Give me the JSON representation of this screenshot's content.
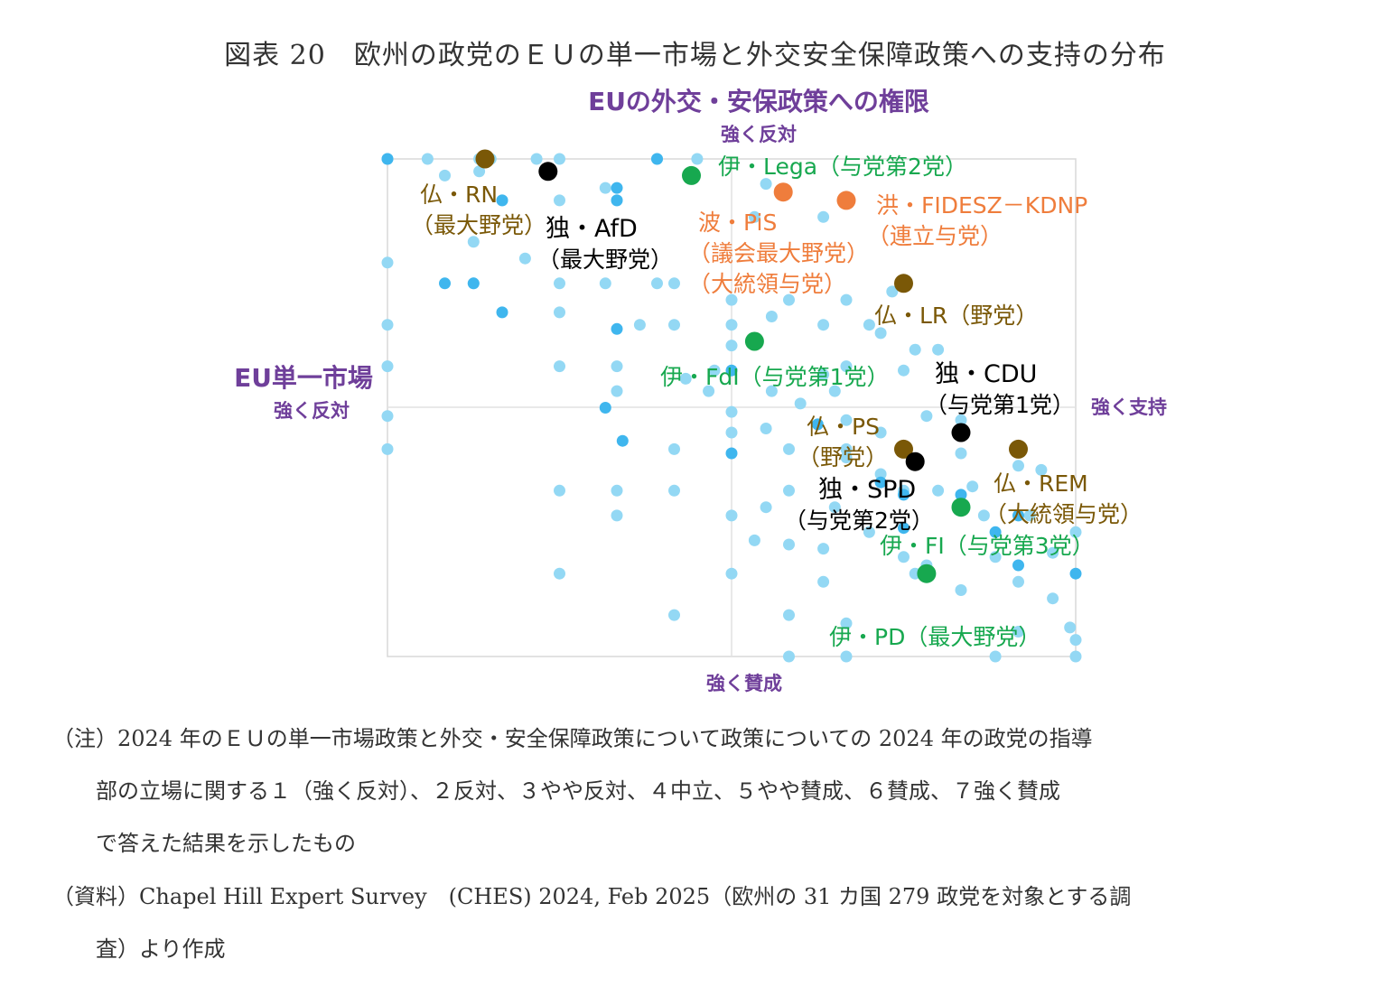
{
  "title": "図表 20　欧州の政党のＥＵの単一市場と外交安全保障政策への支持の分布",
  "chart_data": {
    "type": "scatter",
    "x_axis": {
      "title": "EU単一市場",
      "min_label": "強く反対",
      "max_label": "強く支持",
      "range": [
        1,
        7
      ]
    },
    "y_axis": {
      "title": "EUの外交・安保政策への権限",
      "top_label": "強く反対",
      "bottom_label": "強く賛成",
      "range": [
        1,
        7
      ]
    },
    "colors": {
      "background_points": "#93d8f4",
      "background_points_dark": "#3fb6ee",
      "france": "#7a5807",
      "germany": "#000000",
      "italy": "#17a84f",
      "poland_hungary": "#ef7d3c",
      "axis_purple": "#6f3f9a",
      "frame": "#d8d8d8"
    },
    "background_points": [
      [
        1.0,
        1.0
      ],
      [
        1.35,
        1.0
      ],
      [
        1.8,
        1.0
      ],
      [
        1.9,
        1.0
      ],
      [
        2.3,
        1.0
      ],
      [
        2.5,
        1.0
      ],
      [
        3.35,
        1.0
      ],
      [
        3.7,
        1.0
      ],
      [
        1.5,
        1.2
      ],
      [
        1.8,
        1.15
      ],
      [
        2.4,
        1.15
      ],
      [
        2.9,
        1.35
      ],
      [
        3.65,
        1.2
      ],
      [
        4.3,
        1.3
      ],
      [
        2.0,
        1.5
      ],
      [
        2.5,
        1.5
      ],
      [
        3.0,
        1.5
      ],
      [
        4.2,
        1.7
      ],
      [
        4.8,
        1.7
      ],
      [
        1.0,
        2.25
      ],
      [
        1.75,
        2.0
      ],
      [
        2.2,
        2.2
      ],
      [
        3.35,
        2.5
      ],
      [
        3.5,
        2.5
      ],
      [
        1.75,
        2.5
      ],
      [
        2.5,
        2.5
      ],
      [
        2.9,
        2.5
      ],
      [
        4.0,
        2.7
      ],
      [
        4.5,
        2.7
      ],
      [
        5.0,
        2.7
      ],
      [
        5.4,
        2.6
      ],
      [
        1.0,
        3.0
      ],
      [
        2.5,
        2.85
      ],
      [
        3.2,
        3.0
      ],
      [
        3.5,
        3.0
      ],
      [
        4.0,
        3.0
      ],
      [
        4.35,
        2.9
      ],
      [
        4.8,
        3.0
      ],
      [
        5.2,
        3.0
      ],
      [
        4.0,
        3.25
      ],
      [
        5.3,
        3.1
      ],
      [
        5.6,
        3.3
      ],
      [
        5.8,
        3.3
      ],
      [
        5.0,
        3.5
      ],
      [
        5.5,
        3.55
      ],
      [
        1.0,
        3.5
      ],
      [
        2.5,
        3.5
      ],
      [
        3.0,
        3.5
      ],
      [
        3.6,
        3.65
      ],
      [
        3.85,
        3.55
      ],
      [
        4.35,
        3.8
      ],
      [
        4.8,
        3.6
      ],
      [
        3.0,
        3.8
      ],
      [
        3.8,
        3.8
      ],
      [
        4.6,
        3.95
      ],
      [
        4.0,
        4.05
      ],
      [
        5.0,
        4.15
      ],
      [
        6.0,
        4.15
      ],
      [
        4.9,
        3.8
      ],
      [
        1.0,
        4.1
      ],
      [
        4.0,
        4.3
      ],
      [
        4.3,
        4.25
      ],
      [
        5.0,
        4.5
      ],
      [
        5.3,
        4.3
      ],
      [
        5.7,
        4.1
      ],
      [
        1.0,
        4.5
      ],
      [
        3.5,
        4.5
      ],
      [
        4.5,
        4.5
      ],
      [
        5.0,
        4.6
      ],
      [
        6.0,
        4.55
      ],
      [
        6.5,
        4.7
      ],
      [
        6.7,
        4.75
      ],
      [
        2.5,
        5.0
      ],
      [
        3.0,
        5.0
      ],
      [
        3.5,
        5.0
      ],
      [
        4.5,
        5.0
      ],
      [
        5.3,
        4.8
      ],
      [
        5.5,
        5.0
      ],
      [
        5.8,
        5.0
      ],
      [
        6.1,
        4.95
      ],
      [
        3.0,
        5.3
      ],
      [
        4.0,
        5.3
      ],
      [
        4.3,
        5.2
      ],
      [
        4.9,
        5.2
      ],
      [
        5.2,
        5.5
      ],
      [
        6.2,
        5.3
      ],
      [
        6.6,
        5.3
      ],
      [
        4.2,
        5.6
      ],
      [
        4.5,
        5.65
      ],
      [
        4.8,
        5.7
      ],
      [
        5.5,
        5.8
      ],
      [
        5.7,
        5.9
      ],
      [
        6.3,
        5.8
      ],
      [
        6.8,
        5.75
      ],
      [
        2.5,
        6.0
      ],
      [
        4.0,
        6.0
      ],
      [
        4.8,
        6.1
      ],
      [
        5.6,
        6.0
      ],
      [
        6.0,
        6.2
      ],
      [
        6.5,
        6.1
      ],
      [
        3.5,
        6.5
      ],
      [
        4.5,
        6.5
      ],
      [
        5.0,
        6.6
      ],
      [
        6.5,
        6.7
      ],
      [
        7.0,
        6.8
      ],
      [
        4.5,
        7.0
      ],
      [
        5.0,
        7.0
      ],
      [
        6.3,
        7.0
      ],
      [
        7.0,
        7.0
      ],
      [
        6.95,
        6.65
      ],
      [
        6.8,
        6.3
      ],
      [
        7.0,
        5.5
      ]
    ],
    "background_points_dark": [
      [
        1.0,
        1.0
      ],
      [
        3.35,
        1.0
      ],
      [
        2.0,
        1.5
      ],
      [
        3.0,
        1.35
      ],
      [
        3.0,
        1.5
      ],
      [
        1.75,
        2.5
      ],
      [
        1.5,
        2.5
      ],
      [
        2.0,
        2.85
      ],
      [
        3.0,
        3.05
      ],
      [
        4.0,
        3.55
      ],
      [
        2.9,
        4.0
      ],
      [
        3.05,
        4.4
      ],
      [
        4.0,
        4.55
      ],
      [
        5.3,
        4.9
      ],
      [
        4.75,
        4.2
      ],
      [
        5.5,
        5.45
      ],
      [
        6.0,
        5.05
      ],
      [
        6.5,
        5.3
      ],
      [
        6.3,
        5.5
      ],
      [
        5.5,
        5.05
      ],
      [
        6.5,
        5.9
      ],
      [
        7.0,
        6.0
      ]
    ],
    "highlighted_parties": [
      {
        "label": "仏・RN",
        "sub": "（最大野党）",
        "x": 1.85,
        "y": 1.0,
        "color": "#7a5807"
      },
      {
        "label": "独・AfD",
        "sub": "（最大野党）",
        "x": 2.4,
        "y": 1.15,
        "color": "#000000"
      },
      {
        "label": "伊・Lega（与党第2党）",
        "sub": "",
        "x": 3.65,
        "y": 1.2,
        "color": "#17a84f"
      },
      {
        "label": "波・PiS",
        "sub": "（議会最大野党）",
        "sub2": "（大統領与党）",
        "x": 4.45,
        "y": 1.4,
        "color": "#ef7d3c"
      },
      {
        "label": "洪・FIDESZ－KDNP",
        "sub": "（連立与党）",
        "x": 5.0,
        "y": 1.5,
        "color": "#ef7d3c"
      },
      {
        "label": "仏・LR（野党）",
        "sub": "",
        "x": 5.5,
        "y": 2.5,
        "color": "#7a5807"
      },
      {
        "label": "伊・FdI（与党第1党）",
        "sub": "",
        "x": 4.2,
        "y": 3.2,
        "color": "#17a84f"
      },
      {
        "label": "独・CDU",
        "sub": "（与党第1党）",
        "x": 6.0,
        "y": 4.3,
        "color": "#000000"
      },
      {
        "label": "仏・PS",
        "sub": "（野党）",
        "x": 5.5,
        "y": 4.5,
        "color": "#7a5807"
      },
      {
        "label": "仏・REM",
        "sub": "（大統領与党）",
        "x": 6.5,
        "y": 4.5,
        "color": "#7a5807"
      },
      {
        "label": "独・SPD",
        "sub": "（与党第2党）",
        "x": 5.6,
        "y": 4.65,
        "color": "#000000"
      },
      {
        "label": "伊・FI（与党第3党）",
        "sub": "",
        "x": 6.0,
        "y": 5.2,
        "color": "#17a84f"
      },
      {
        "label": "伊・PD（最大野党）",
        "sub": "",
        "x": 5.7,
        "y": 6.0,
        "color": "#17a84f"
      }
    ]
  },
  "notes": {
    "line1": "（注）2024 年のＥＵの単一市場政策と外交・安全保障政策について政策についての 2024 年の政党の指導",
    "line2": "部の立場に関する１（強く反対）、２反対、３やや反対、４中立、５やや賛成、６賛成、７強く賛成",
    "line3": "で答えた結果を示したもの",
    "line4": "（資料）Chapel Hill Expert Survey　(CHES) 2024,  Feb 2025（欧州の 31 カ国 279 政党を対象とする調",
    "line5": "査）より作成"
  }
}
